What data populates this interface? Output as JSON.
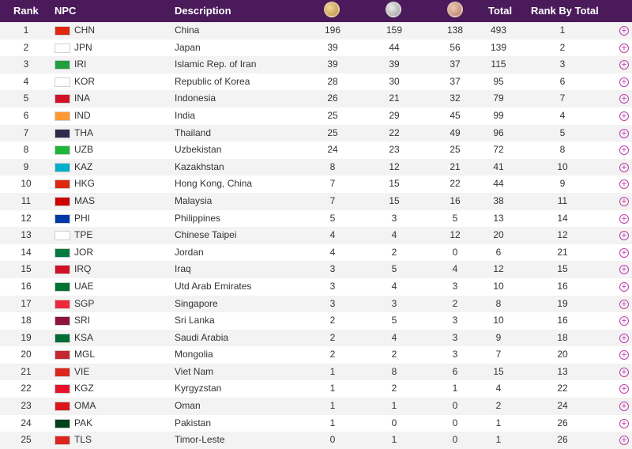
{
  "header": {
    "rank": "Rank",
    "npc": "NPC",
    "description": "Description",
    "gold_icon": "gold-medal-icon",
    "silver_icon": "silver-medal-icon",
    "bronze_icon": "bronze-medal-icon",
    "total": "Total",
    "rank_by_total": "Rank By Total"
  },
  "expand_icon": "plus-circle-icon",
  "rows": [
    {
      "rank": "1",
      "code": "CHN",
      "name": "China",
      "gold": "196",
      "silver": "159",
      "bronze": "138",
      "total": "493",
      "rbt": "1",
      "flag": "#de2910"
    },
    {
      "rank": "2",
      "code": "JPN",
      "name": "Japan",
      "gold": "39",
      "silver": "44",
      "bronze": "56",
      "total": "139",
      "rbt": "2",
      "flag": "#ffffff"
    },
    {
      "rank": "3",
      "code": "IRI",
      "name": "Islamic Rep. of Iran",
      "gold": "39",
      "silver": "39",
      "bronze": "37",
      "total": "115",
      "rbt": "3",
      "flag": "#239f40"
    },
    {
      "rank": "4",
      "code": "KOR",
      "name": "Republic of Korea",
      "gold": "28",
      "silver": "30",
      "bronze": "37",
      "total": "95",
      "rbt": "6",
      "flag": "#ffffff"
    },
    {
      "rank": "5",
      "code": "INA",
      "name": "Indonesia",
      "gold": "26",
      "silver": "21",
      "bronze": "32",
      "total": "79",
      "rbt": "7",
      "flag": "#ce1126"
    },
    {
      "rank": "6",
      "code": "IND",
      "name": "India",
      "gold": "25",
      "silver": "29",
      "bronze": "45",
      "total": "99",
      "rbt": "4",
      "flag": "#ff9933"
    },
    {
      "rank": "7",
      "code": "THA",
      "name": "Thailand",
      "gold": "25",
      "silver": "22",
      "bronze": "49",
      "total": "96",
      "rbt": "5",
      "flag": "#2d2a4a"
    },
    {
      "rank": "8",
      "code": "UZB",
      "name": "Uzbekistan",
      "gold": "24",
      "silver": "23",
      "bronze": "25",
      "total": "72",
      "rbt": "8",
      "flag": "#1eb53a"
    },
    {
      "rank": "9",
      "code": "KAZ",
      "name": "Kazakhstan",
      "gold": "8",
      "silver": "12",
      "bronze": "21",
      "total": "41",
      "rbt": "10",
      "flag": "#00afca"
    },
    {
      "rank": "10",
      "code": "HKG",
      "name": "Hong Kong, China",
      "gold": "7",
      "silver": "15",
      "bronze": "22",
      "total": "44",
      "rbt": "9",
      "flag": "#de2910"
    },
    {
      "rank": "11",
      "code": "MAS",
      "name": "Malaysia",
      "gold": "7",
      "silver": "15",
      "bronze": "16",
      "total": "38",
      "rbt": "11",
      "flag": "#cc0001"
    },
    {
      "rank": "12",
      "code": "PHI",
      "name": "Philippines",
      "gold": "5",
      "silver": "3",
      "bronze": "5",
      "total": "13",
      "rbt": "14",
      "flag": "#0038a8"
    },
    {
      "rank": "13",
      "code": "TPE",
      "name": "Chinese Taipei",
      "gold": "4",
      "silver": "4",
      "bronze": "12",
      "total": "20",
      "rbt": "12",
      "flag": "#ffffff"
    },
    {
      "rank": "14",
      "code": "JOR",
      "name": "Jordan",
      "gold": "4",
      "silver": "2",
      "bronze": "0",
      "total": "6",
      "rbt": "21",
      "flag": "#007a3d"
    },
    {
      "rank": "15",
      "code": "IRQ",
      "name": "Iraq",
      "gold": "3",
      "silver": "5",
      "bronze": "4",
      "total": "12",
      "rbt": "15",
      "flag": "#ce1126"
    },
    {
      "rank": "16",
      "code": "UAE",
      "name": "Utd Arab Emirates",
      "gold": "3",
      "silver": "4",
      "bronze": "3",
      "total": "10",
      "rbt": "16",
      "flag": "#00732f"
    },
    {
      "rank": "17",
      "code": "SGP",
      "name": "Singapore",
      "gold": "3",
      "silver": "3",
      "bronze": "2",
      "total": "8",
      "rbt": "19",
      "flag": "#ed2939"
    },
    {
      "rank": "18",
      "code": "SRI",
      "name": "Sri Lanka",
      "gold": "2",
      "silver": "5",
      "bronze": "3",
      "total": "10",
      "rbt": "16",
      "flag": "#8d153a"
    },
    {
      "rank": "19",
      "code": "KSA",
      "name": "Saudi Arabia",
      "gold": "2",
      "silver": "4",
      "bronze": "3",
      "total": "9",
      "rbt": "18",
      "flag": "#006c35"
    },
    {
      "rank": "20",
      "code": "MGL",
      "name": "Mongolia",
      "gold": "2",
      "silver": "2",
      "bronze": "3",
      "total": "7",
      "rbt": "20",
      "flag": "#c4272f"
    },
    {
      "rank": "21",
      "code": "VIE",
      "name": "Viet Nam",
      "gold": "1",
      "silver": "8",
      "bronze": "6",
      "total": "15",
      "rbt": "13",
      "flag": "#da251d"
    },
    {
      "rank": "22",
      "code": "KGZ",
      "name": "Kyrgyzstan",
      "gold": "1",
      "silver": "2",
      "bronze": "1",
      "total": "4",
      "rbt": "22",
      "flag": "#e8112d"
    },
    {
      "rank": "23",
      "code": "OMA",
      "name": "Oman",
      "gold": "1",
      "silver": "1",
      "bronze": "0",
      "total": "2",
      "rbt": "24",
      "flag": "#db161b"
    },
    {
      "rank": "24",
      "code": "PAK",
      "name": "Pakistan",
      "gold": "1",
      "silver": "0",
      "bronze": "0",
      "total": "1",
      "rbt": "26",
      "flag": "#01411c"
    },
    {
      "rank": "25",
      "code": "TLS",
      "name": "Timor-Leste",
      "gold": "0",
      "silver": "1",
      "bronze": "0",
      "total": "1",
      "rbt": "26",
      "flag": "#dc241f"
    }
  ]
}
